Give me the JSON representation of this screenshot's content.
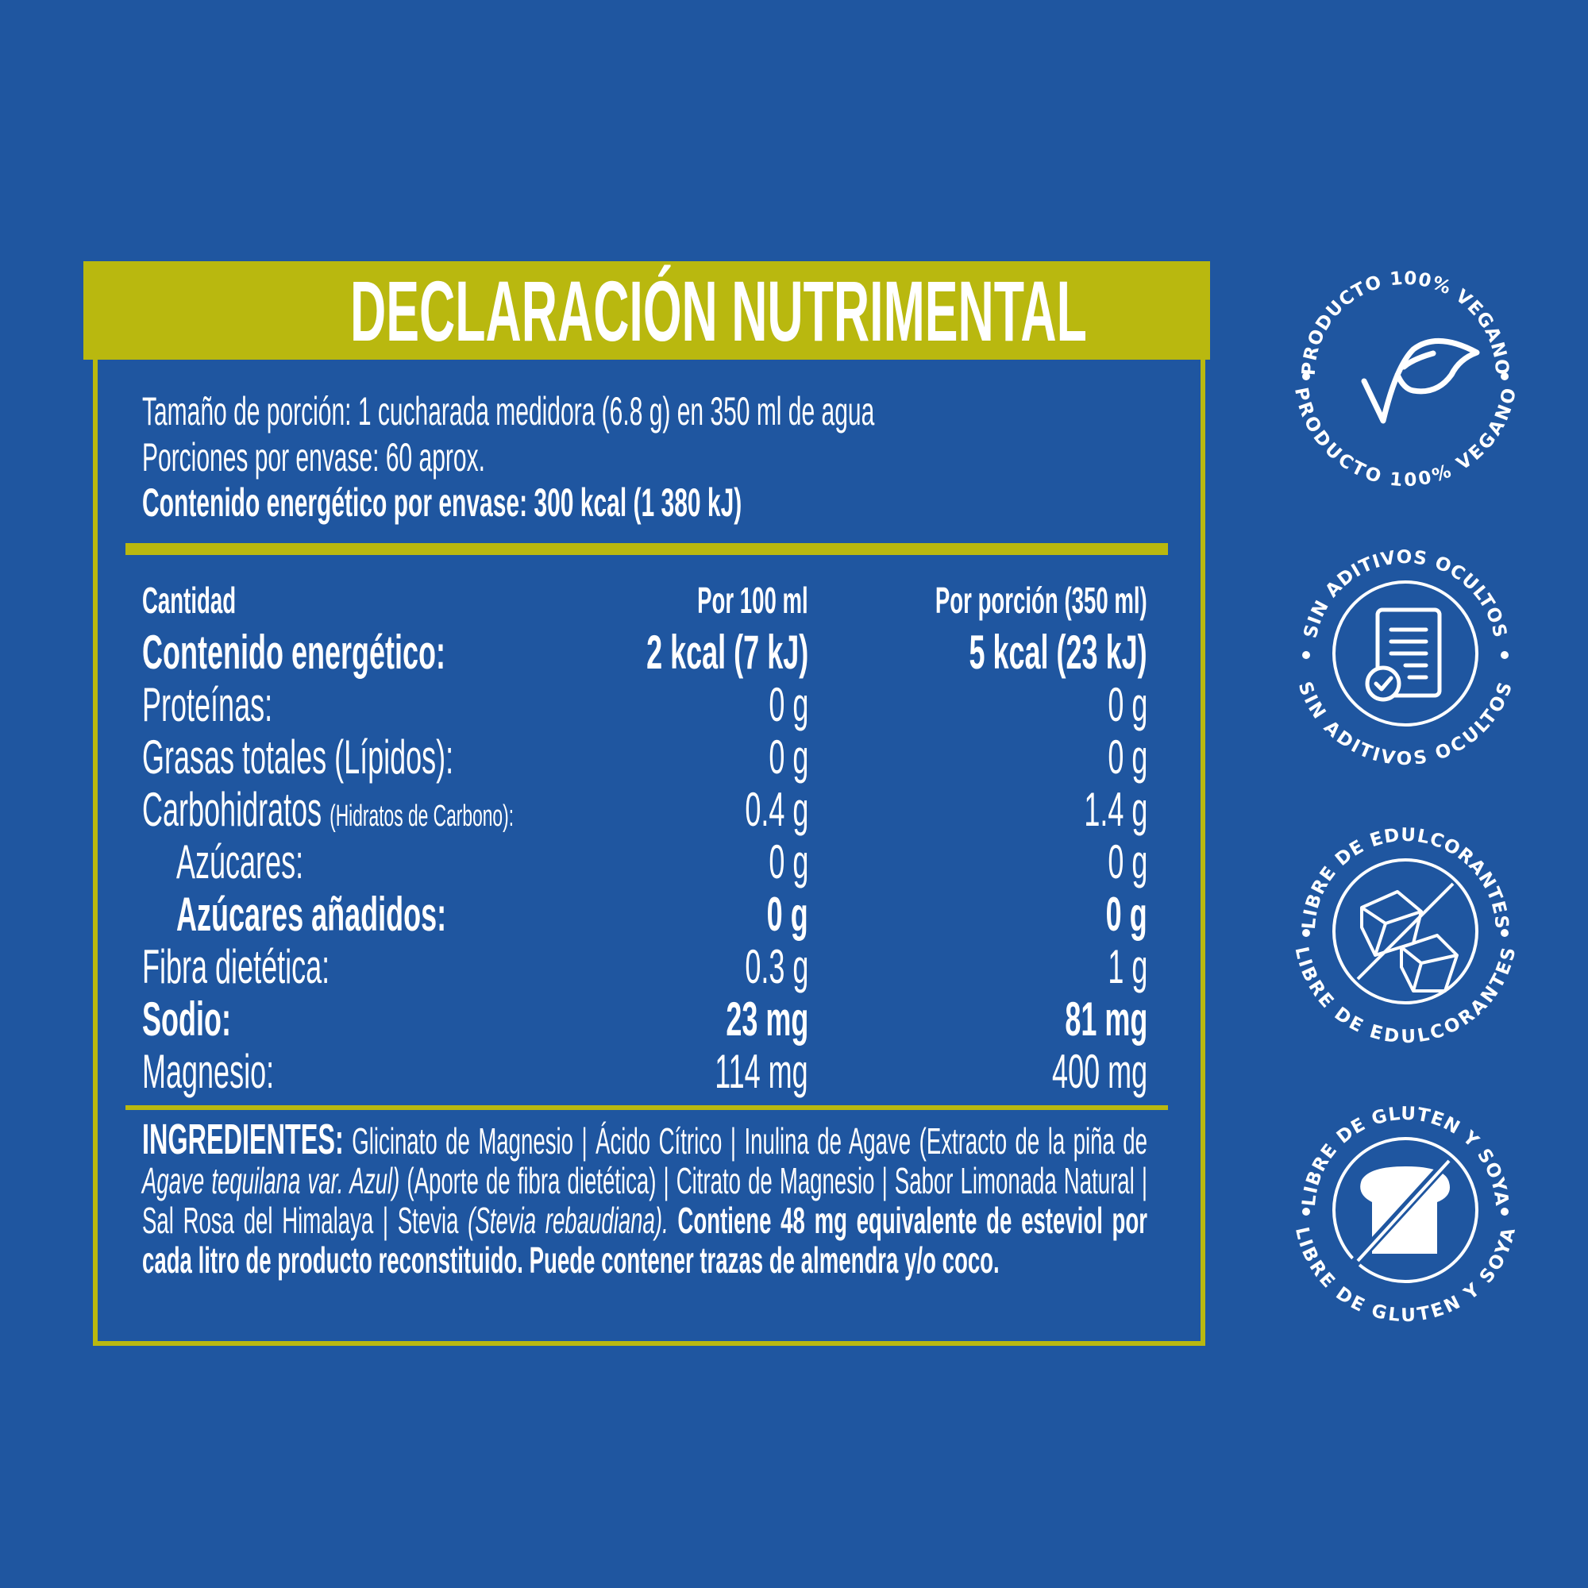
{
  "colors": {
    "background": "#1f56a0",
    "accent": "#b9b80f",
    "text": "#ffffff"
  },
  "title": "DECLARACIÓN NUTRIMENTAL",
  "serving": {
    "size": "Tamaño de porción: 1 cucharada medidora (6.8 g) en 350 ml de agua",
    "portions": "Porciones por envase: 60 aprox.",
    "energy": "Contenido energético por envase:  300 kcal (1 380 kJ)"
  },
  "table": {
    "headers": [
      "Cantidad",
      "Por 100 ml",
      "Por porción (350 ml)"
    ],
    "rows": [
      {
        "label": "Contenido energético:",
        "per100": "2 kcal (7 kJ)",
        "perPortion": "5 kcal (23 kJ)"
      },
      {
        "label": "Proteínas:",
        "per100": "0 g",
        "perPortion": "0 g"
      },
      {
        "label": "Grasas totales (Lípidos):",
        "per100": "0 g",
        "perPortion": "0 g"
      },
      {
        "label": "Carbohidratos",
        "sublabel": "(Hidratos de Carbono):",
        "per100": "0.4 g",
        "perPortion": "1.4 g"
      },
      {
        "label": "Azúcares:",
        "per100": "0 g",
        "perPortion": "0 g"
      },
      {
        "label": "Azúcares añadidos:",
        "per100": "0 g",
        "perPortion": "0 g"
      },
      {
        "label": "Fibra dietética:",
        "per100": "0.3 g",
        "perPortion": "1 g"
      },
      {
        "label": "Sodio:",
        "per100": "23 mg",
        "perPortion": "81 mg"
      },
      {
        "label": "Magnesio:",
        "per100": "114 mg",
        "perPortion": "400 mg"
      }
    ]
  },
  "ingredients": {
    "heading": "INGREDIENTES:",
    "part1": " Glicinato de Magnesio | Ácido Cítrico | Inulina de Agave (Extracto de la piña de ",
    "italic1": "Agave tequilana var. Azul)",
    "part2": " (Aporte de fibra dietética) | Citrato de Magnesio | Sabor Limonada Natural | Sal Rosa del Himalaya | Stevia ",
    "italic2": "(Stevia rebaudiana).",
    "bold": " Contiene 48 mg equivalente de esteviol por cada litro de producto reconstituido. Puede contener trazas de almendra y/o coco."
  },
  "badges": [
    {
      "text": "PRODUCTO 100% VEGANO",
      "icon": "vegan-leaf-check-icon"
    },
    {
      "text": "SIN ADITIVOS OCULTOS",
      "icon": "document-check-icon"
    },
    {
      "text": "LIBRE DE EDULCORANTES",
      "icon": "sugar-cubes-crossed-icon"
    },
    {
      "text": "LIBRE DE GLUTEN Y SOYA",
      "icon": "bread-crossed-icon"
    }
  ]
}
